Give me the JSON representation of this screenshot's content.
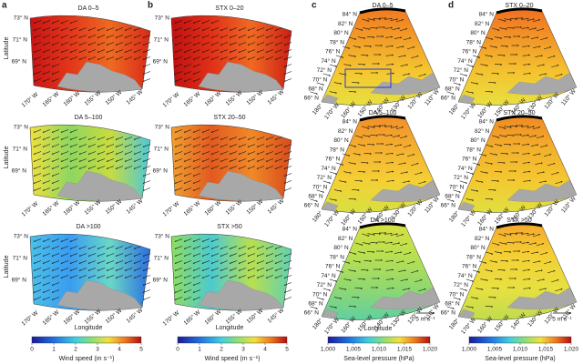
{
  "panel_letters": [
    "a",
    "b",
    "c",
    "d"
  ],
  "columns": [
    {
      "titles": [
        "DA 0–5",
        "DA 5–100",
        "DA >100"
      ]
    },
    {
      "titles": [
        "STX 0–20",
        "STX 20–50",
        "STX >50"
      ]
    },
    {
      "titles": [
        "DA 0–5",
        "DA 5–100",
        "DA >100"
      ]
    },
    {
      "titles": [
        "STX 0–20",
        "STX 20–50",
        "STX >50"
      ]
    }
  ],
  "regional_axes": {
    "latitudes": [
      "73° N",
      "71° N",
      "69° N"
    ],
    "longitudes": [
      "170° W",
      "165° W",
      "160° W",
      "155° W",
      "150° W",
      "145° W"
    ],
    "y_label": "Latitude",
    "x_label": "Longitude"
  },
  "arctic_axes": {
    "latitudes": [
      "84° N",
      "82° N",
      "80° N",
      "78° N",
      "76° N",
      "74° N",
      "72° N",
      "70° N",
      "68° N",
      "66° N"
    ],
    "longitudes": [
      "180°",
      "170° W",
      "160° W",
      "150° W",
      "140° W",
      "130° W",
      "120° W",
      "110° W"
    ],
    "x_label": "Longitude",
    "scale_label": "5 m s⁻¹"
  },
  "wind_colorbar": {
    "range": [
      0,
      5
    ],
    "ticks": [
      0,
      1,
      2,
      3,
      4,
      5
    ],
    "label": "Wind speed (m s⁻¹)"
  },
  "pressure_colorbar": {
    "range": [
      1000,
      1020
    ],
    "ticks": [
      {
        "value": 1000,
        "label": "1,000"
      },
      {
        "value": 1005,
        "label": "1,005"
      },
      {
        "value": 1010,
        "label": "1,010"
      },
      {
        "value": 1015,
        "label": "1,015"
      },
      {
        "value": 1020,
        "label": "1,020"
      }
    ],
    "label": "Sea-level pressure (hPa)"
  }
}
